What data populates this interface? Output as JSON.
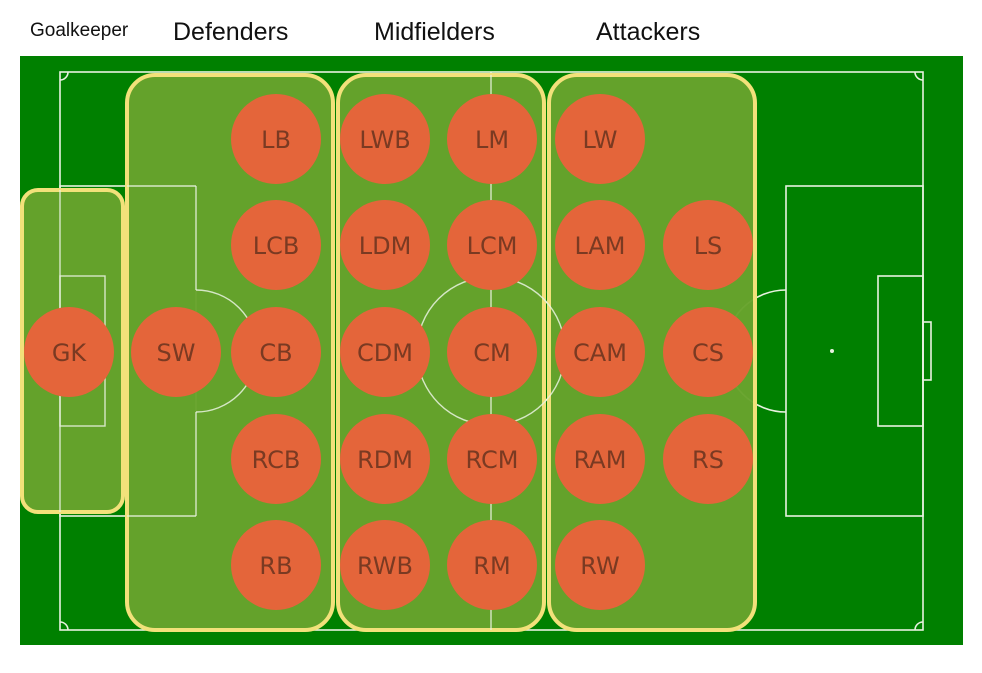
{
  "groups": {
    "goalkeeper": "Goalkeeper",
    "defenders": "Defenders",
    "midfielders": "Midfielders",
    "attackers": "Attackers"
  },
  "colors": {
    "outer_pitch": "#008000",
    "zone_fill": "#67a32c",
    "zone_border": "#f2e17a",
    "player_fill": "#e4653a",
    "player_text": "#7a3a22",
    "lines": "#e8f2e0"
  },
  "positions": {
    "gk": "GK",
    "sw": "SW",
    "lb": "LB",
    "lcb": "LCB",
    "cb": "CB",
    "rcb": "RCB",
    "rb": "RB",
    "lwb": "LWB",
    "ldm": "LDM",
    "cdm": "CDM",
    "rdm": "RDM",
    "rwb": "RWB",
    "lm": "LM",
    "lcm": "LCM",
    "cm": "CM",
    "rcm": "RCM",
    "rm": "RM",
    "lw": "LW",
    "lam": "LAM",
    "cam": "CAM",
    "ram": "RAM",
    "rw": "RW",
    "ls": "LS",
    "cs": "CS",
    "rs": "RS"
  }
}
